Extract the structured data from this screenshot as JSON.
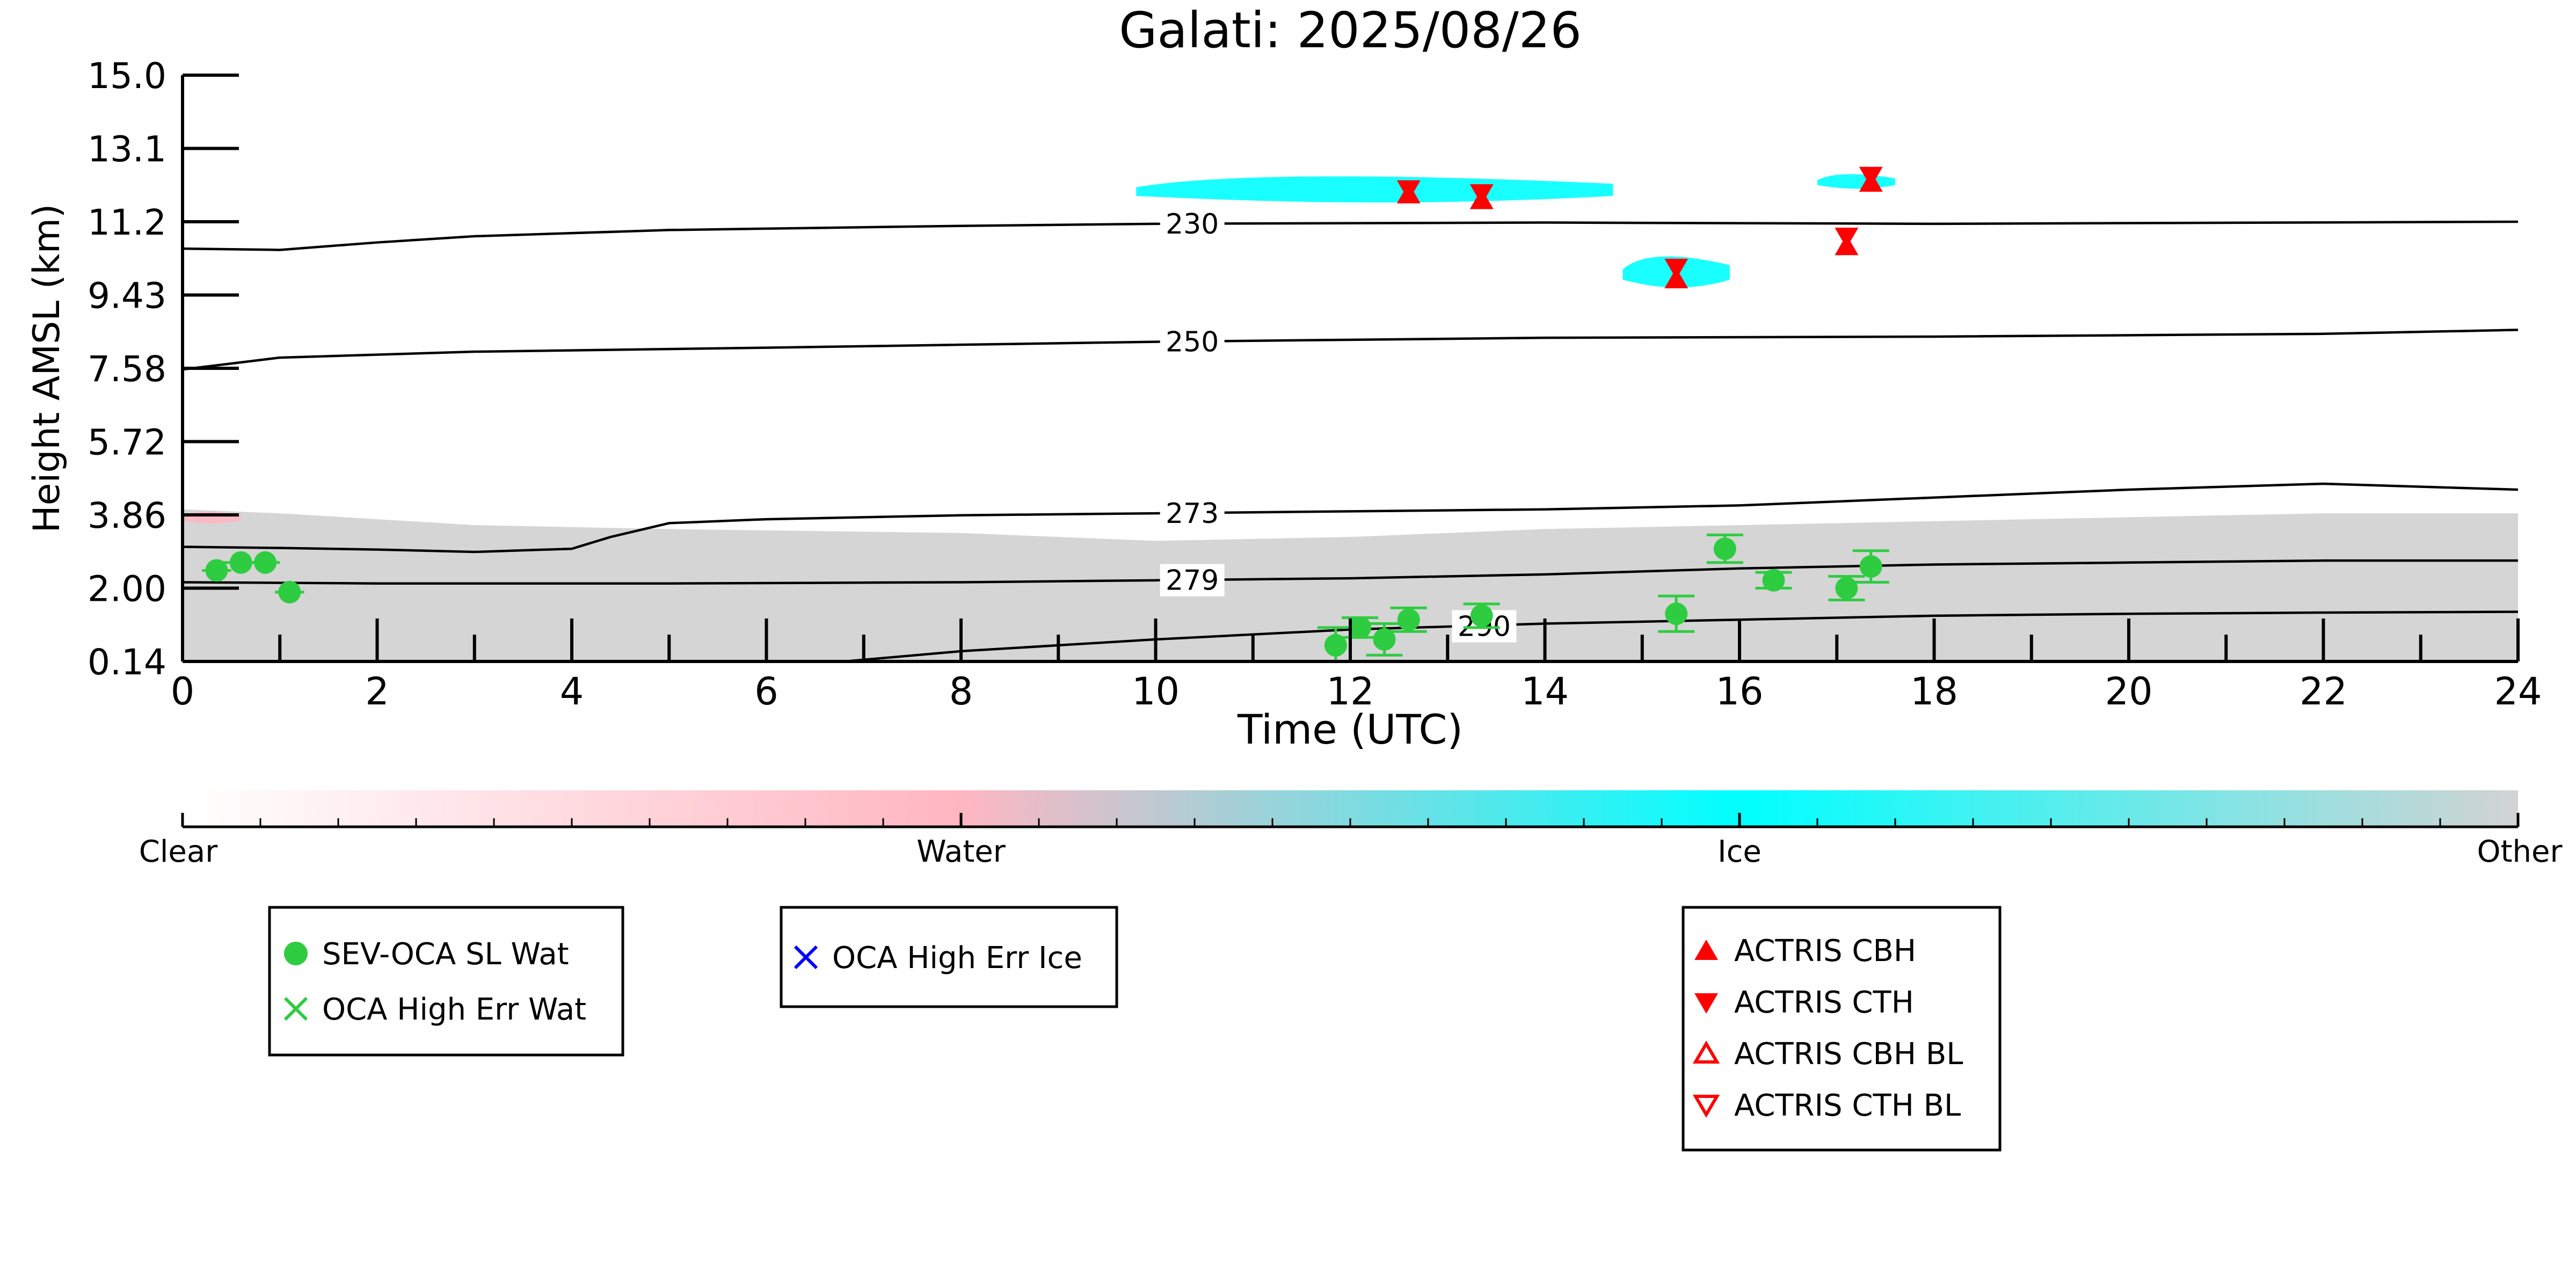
{
  "chart_data": {
    "type": "scatter",
    "title": "Galati: 2025/08/26",
    "xlabel": "Time (UTC)",
    "ylabel": "Height AMSL (km)",
    "xlim": [
      0,
      24
    ],
    "x_ticks": [
      "0",
      "2",
      "4",
      "6",
      "8",
      "10",
      "12",
      "14",
      "16",
      "18",
      "20",
      "22",
      "24"
    ],
    "y_ticks": [
      "0.14",
      "2.00",
      "3.86",
      "5.72",
      "7.58",
      "9.43",
      "11.2",
      "13.1",
      "15.0"
    ],
    "y_tick_values": [
      0.14,
      2.0,
      3.86,
      5.72,
      7.58,
      9.43,
      11.2,
      13.1,
      15.0
    ],
    "ylim": [
      0.14,
      15.0
    ],
    "colors": {
      "clear": "#ffffff",
      "water": "#ffb6c1",
      "ice": "#00ffff",
      "other": "#d3d3d3",
      "sev_oca_wat": "#2ecc40",
      "oca_high_err_ice": "#0000ff",
      "actris": "#ff0000",
      "contour": "#000000"
    },
    "colorbar": {
      "labels": [
        "Clear",
        "Water",
        "Ice",
        "Other"
      ]
    },
    "contours": [
      {
        "label": "230",
        "label_x": 10.1,
        "points": [
          [
            0,
            10.55
          ],
          [
            1,
            10.52
          ],
          [
            2,
            10.7
          ],
          [
            3,
            10.85
          ],
          [
            5,
            11.0
          ],
          [
            8,
            11.1
          ],
          [
            10,
            11.15
          ],
          [
            14,
            11.18
          ],
          [
            18,
            11.15
          ],
          [
            24,
            11.2
          ]
        ]
      },
      {
        "label": "250",
        "label_x": 10.1,
        "points": [
          [
            0,
            7.55
          ],
          [
            0.5,
            7.7
          ],
          [
            1,
            7.85
          ],
          [
            3,
            8.0
          ],
          [
            6,
            8.1
          ],
          [
            10,
            8.25
          ],
          [
            14,
            8.35
          ],
          [
            18,
            8.38
          ],
          [
            22,
            8.45
          ],
          [
            24,
            8.55
          ]
        ]
      },
      {
        "label": "273",
        "label_x": 10.1,
        "points": [
          [
            0,
            3.05
          ],
          [
            1,
            3.02
          ],
          [
            2,
            2.98
          ],
          [
            3,
            2.92
          ],
          [
            4,
            3.0
          ],
          [
            4.4,
            3.3
          ],
          [
            5,
            3.65
          ],
          [
            6,
            3.75
          ],
          [
            8,
            3.85
          ],
          [
            10,
            3.9
          ],
          [
            12,
            3.95
          ],
          [
            14,
            4.0
          ],
          [
            16,
            4.1
          ],
          [
            18,
            4.3
          ],
          [
            20,
            4.5
          ],
          [
            22,
            4.65
          ],
          [
            24,
            4.5
          ]
        ]
      },
      {
        "label": "279",
        "label_x": 10.1,
        "points": [
          [
            0,
            2.15
          ],
          [
            2,
            2.12
          ],
          [
            5,
            2.12
          ],
          [
            8,
            2.15
          ],
          [
            10,
            2.2
          ],
          [
            12,
            2.25
          ],
          [
            14,
            2.35
          ],
          [
            16,
            2.5
          ],
          [
            18,
            2.6
          ],
          [
            20,
            2.65
          ],
          [
            22,
            2.7
          ],
          [
            24,
            2.7
          ]
        ]
      },
      {
        "label": "290",
        "label_x": 13.1,
        "points": [
          [
            6.8,
            0.14
          ],
          [
            8,
            0.4
          ],
          [
            10,
            0.7
          ],
          [
            12,
            0.95
          ],
          [
            14,
            1.1
          ],
          [
            16,
            1.2
          ],
          [
            18,
            1.3
          ],
          [
            20,
            1.35
          ],
          [
            22,
            1.38
          ],
          [
            24,
            1.4
          ]
        ]
      }
    ],
    "series": [
      {
        "name": "SEV-OCA SL Wat",
        "marker": "circle",
        "points": [
          {
            "x": 0.35,
            "y": 2.45,
            "xerr": 0.15
          },
          {
            "x": 0.6,
            "y": 2.65,
            "xerr": 0.2
          },
          {
            "x": 0.85,
            "y": 2.65,
            "xerr": 0.15
          },
          {
            "x": 1.1,
            "y": 1.9,
            "xerr": 0.15
          },
          {
            "x": 11.85,
            "y": 0.55,
            "yerr": 0.45
          },
          {
            "x": 12.1,
            "y": 1.0,
            "yerr": 0.25
          },
          {
            "x": 12.35,
            "y": 0.7,
            "yerr": 0.4
          },
          {
            "x": 12.6,
            "y": 1.2,
            "yerr": 0.3
          },
          {
            "x": 13.35,
            "y": 1.3,
            "yerr": 0.3
          },
          {
            "x": 15.35,
            "y": 1.35,
            "yerr": 0.45
          },
          {
            "x": 15.85,
            "y": 3.0,
            "yerr": 0.35
          },
          {
            "x": 16.35,
            "y": 2.2,
            "yerr": 0.2
          },
          {
            "x": 17.1,
            "y": 2.0,
            "yerr": 0.3
          },
          {
            "x": 17.35,
            "y": 2.55,
            "yerr": 0.4
          }
        ]
      },
      {
        "name": "ACTRIS CBH",
        "marker": "triangle-up",
        "points": [
          {
            "x": 12.6,
            "y": 11.9
          },
          {
            "x": 13.35,
            "y": 11.75
          },
          {
            "x": 15.35,
            "y": 9.8
          },
          {
            "x": 17.1,
            "y": 10.6
          },
          {
            "x": 17.35,
            "y": 12.2
          }
        ]
      },
      {
        "name": "ACTRIS CTH",
        "marker": "triangle-down",
        "points": [
          {
            "x": 12.6,
            "y": 12.05
          },
          {
            "x": 13.35,
            "y": 11.95
          },
          {
            "x": 15.35,
            "y": 10.1
          },
          {
            "x": 17.1,
            "y": 10.85
          },
          {
            "x": 17.35,
            "y": 12.4
          }
        ]
      }
    ],
    "cloud_regions": [
      {
        "class": "other",
        "x0": 0,
        "x1": 24,
        "top": [
          [
            0,
            4.0
          ],
          [
            1,
            3.9
          ],
          [
            3,
            3.6
          ],
          [
            5,
            3.5
          ],
          [
            8,
            3.4
          ],
          [
            10,
            3.2
          ],
          [
            12,
            3.3
          ],
          [
            14,
            3.5
          ],
          [
            16,
            3.6
          ],
          [
            18,
            3.7
          ],
          [
            20,
            3.8
          ],
          [
            22,
            3.9
          ],
          [
            24,
            3.9
          ]
        ]
      },
      {
        "class": "ice",
        "x0": 9.8,
        "x1": 14.7,
        "y0": 11.6,
        "y1": 12.5
      },
      {
        "class": "ice",
        "x0": 14.8,
        "x1": 15.9,
        "y0": 9.5,
        "y1": 10.5
      },
      {
        "class": "ice",
        "x0": 16.8,
        "x1": 17.6,
        "y0": 12.0,
        "y1": 12.5
      },
      {
        "class": "water",
        "x0": 0,
        "x1": 0.6,
        "y0": 3.6,
        "y1": 4.0
      }
    ],
    "legends": [
      {
        "entries": [
          {
            "label": "SEV-OCA SL Wat",
            "marker": "circle",
            "color": "#2ecc40"
          },
          {
            "label": "OCA High Err Wat",
            "marker": "x",
            "color": "#2ecc40"
          }
        ]
      },
      {
        "entries": [
          {
            "label": "OCA High Err Ice",
            "marker": "x",
            "color": "#0000ff"
          }
        ]
      },
      {
        "entries": [
          {
            "label": "ACTRIS CBH",
            "marker": "triangle-up",
            "color": "#ff0000"
          },
          {
            "label": "ACTRIS CTH",
            "marker": "triangle-down",
            "color": "#ff0000"
          },
          {
            "label": "ACTRIS CBH BL",
            "marker": "triangle-up-open",
            "color": "#ff0000"
          },
          {
            "label": "ACTRIS CTH BL",
            "marker": "triangle-down-open",
            "color": "#ff0000"
          }
        ]
      }
    ]
  }
}
